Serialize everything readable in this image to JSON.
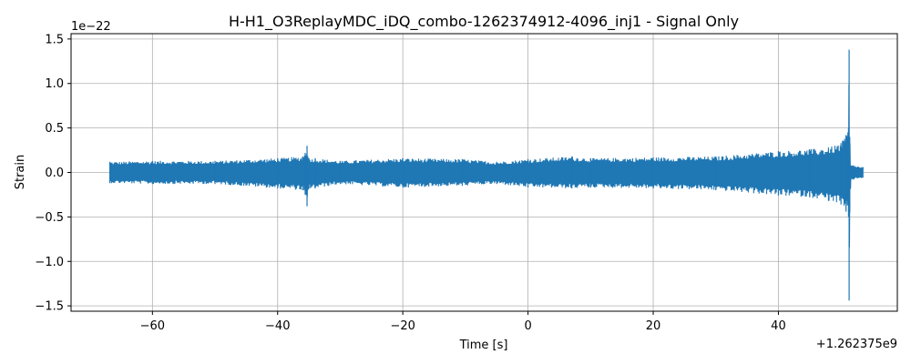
{
  "chart_data": {
    "type": "line",
    "title": "H-H1_O3ReplayMDC_iDQ_combo-1262374912-4096_inj1 - Signal Only",
    "xlabel": "Time [s]",
    "ylabel": "Strain",
    "x_offset_label": "+1.262375e9",
    "y_scale_label": "1e−22",
    "xlim": [
      -73,
      59
    ],
    "ylim": [
      -1.56,
      1.56
    ],
    "x_ticks": [
      {
        "value": -60,
        "label": "−60"
      },
      {
        "value": -40,
        "label": "−40"
      },
      {
        "value": -20,
        "label": "−20"
      },
      {
        "value": 0,
        "label": "0"
      },
      {
        "value": 20,
        "label": "20"
      },
      {
        "value": 40,
        "label": "40"
      }
    ],
    "y_ticks": [
      {
        "value": -1.5,
        "label": "−1.5"
      },
      {
        "value": -1.0,
        "label": "−1.0"
      },
      {
        "value": -0.5,
        "label": "−0.5"
      },
      {
        "value": 0.0,
        "label": "0.0"
      },
      {
        "value": 0.5,
        "label": "0.5"
      },
      {
        "value": 1.0,
        "label": "1.0"
      },
      {
        "value": 1.5,
        "label": "1.5"
      }
    ],
    "grid": true,
    "series": [
      {
        "color": "#1f77b4",
        "envelope": {
          "x": [
            -66.8,
            -60,
            -50,
            -40,
            -36,
            -35.6,
            -35.3,
            -35.0,
            -34,
            -30,
            -20,
            -10.5,
            -5,
            0,
            7,
            10,
            20,
            30,
            40,
            45,
            48,
            50,
            50.8,
            51.2,
            51.3,
            51.4,
            51.6,
            52,
            53.5
          ],
          "upper": [
            0.12,
            0.13,
            0.13,
            0.16,
            0.18,
            0.22,
            0.3,
            0.16,
            0.16,
            0.13,
            0.16,
            0.15,
            0.12,
            0.15,
            0.18,
            0.16,
            0.17,
            0.18,
            0.24,
            0.26,
            0.28,
            0.33,
            0.42,
            0.5,
            1.38,
            0.4,
            0.08,
            0.08,
            0.06
          ],
          "lower": [
            -0.12,
            -0.13,
            -0.13,
            -0.18,
            -0.2,
            -0.25,
            -0.38,
            -0.18,
            -0.18,
            -0.13,
            -0.17,
            -0.15,
            -0.13,
            -0.17,
            -0.18,
            -0.17,
            -0.18,
            -0.2,
            -0.26,
            -0.28,
            -0.32,
            -0.36,
            -0.44,
            -0.5,
            -1.44,
            -0.45,
            -0.08,
            -0.08,
            -0.06
          ]
        }
      }
    ]
  }
}
